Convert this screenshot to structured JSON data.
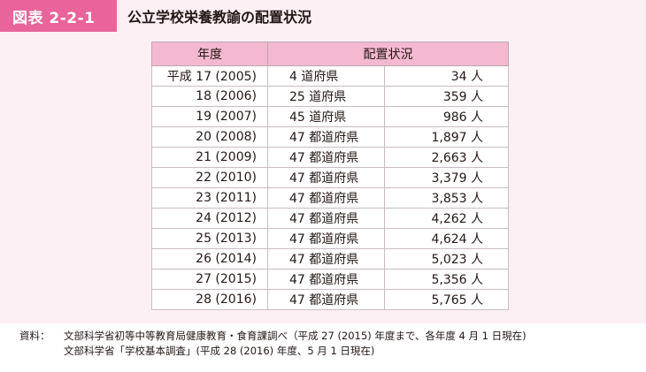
{
  "header": {
    "badge": "図表 2-2-1",
    "title": "公立学校栄養教諭の配置状況"
  },
  "table": {
    "headers": [
      "年度",
      "配置状況"
    ],
    "rows": [
      {
        "year": "平成 17 (2005)",
        "prefs": "4 道府県",
        "count": "34 人"
      },
      {
        "year": "18 (2006)",
        "prefs": "25 道府県",
        "count": "359 人"
      },
      {
        "year": "19 (2007)",
        "prefs": "45 道府県",
        "count": "986 人"
      },
      {
        "year": "20 (2008)",
        "prefs": "47 都道府県",
        "count": "1,897 人"
      },
      {
        "year": "21 (2009)",
        "prefs": "47 都道府県",
        "count": "2,663 人"
      },
      {
        "year": "22 (2010)",
        "prefs": "47 都道府県",
        "count": "3,379 人"
      },
      {
        "year": "23 (2011)",
        "prefs": "47 都道府県",
        "count": "3,853 人"
      },
      {
        "year": "24 (2012)",
        "prefs": "47 都道府県",
        "count": "4,262 人"
      },
      {
        "year": "25 (2013)",
        "prefs": "47 都道府県",
        "count": "4,624 人"
      },
      {
        "year": "26 (2014)",
        "prefs": "47 都道府県",
        "count": "5,023 人"
      },
      {
        "year": "27 (2015)",
        "prefs": "47 都道府県",
        "count": "5,356 人"
      },
      {
        "year": "28 (2016)",
        "prefs": "47 都道府県",
        "count": "5,765 人"
      }
    ]
  },
  "notes": {
    "label": "資料：",
    "line1": "文部科学省初等中等教育局健康教育・食育課調べ（平成 27 (2015) 年度まで、各年度 4 月 1 日現在)",
    "line2": "文部科学省「学校基本調査」(平成 28 (2016) 年度、5 月 1 日現在)"
  }
}
